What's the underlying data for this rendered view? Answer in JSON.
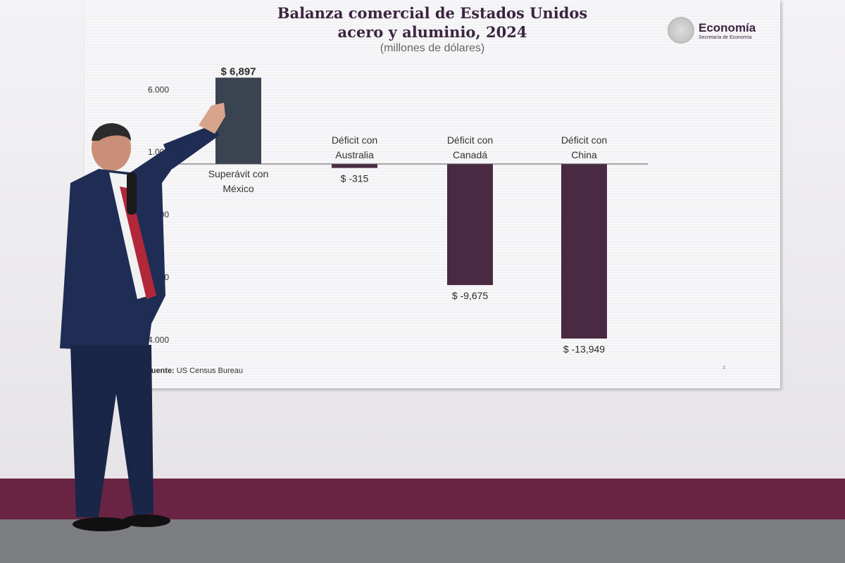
{
  "chart_data": {
    "type": "bar",
    "title": "Balanza comercial de Estados Unidos acero y aluminio, 2024",
    "title_lines": [
      "Balanza comercial de Estados Unidos",
      "acero y aluminio, 2024"
    ],
    "subtitle": "(millones de dólares)",
    "categories": [
      "Superávit con México",
      "Déficit con Australia",
      "Déficit con Canadá",
      "Déficit con China"
    ],
    "category_lines": [
      [
        "Superávit con",
        "México"
      ],
      [
        "Déficit con",
        "Australia"
      ],
      [
        "Déficit con",
        "Canadá"
      ],
      [
        "Déficit con",
        "China"
      ]
    ],
    "values": [
      6897,
      -315,
      -9675,
      -13949
    ],
    "value_labels": [
      "$ 6,897",
      "$ -315",
      "$ -9,675",
      "$ -13,949"
    ],
    "yticks": [
      6000,
      1000,
      -4000,
      -9000,
      -14000
    ],
    "ytick_labels": [
      "6.000",
      "1.000",
      "-4.000",
      "-9.000",
      "-14.000"
    ],
    "ylim": [
      -14500,
      7500
    ],
    "colors": [
      "#3a4350",
      "#4a2a42",
      "#4a2a42",
      "#4a2a42"
    ],
    "grid": false,
    "source": "Fuente: US Census Bureau",
    "source_bold": "Fuente:",
    "source_text": "US Census Bureau",
    "page_number": "4"
  },
  "logo": {
    "name": "Economía",
    "subtitle": "Secretaría de Economía"
  }
}
